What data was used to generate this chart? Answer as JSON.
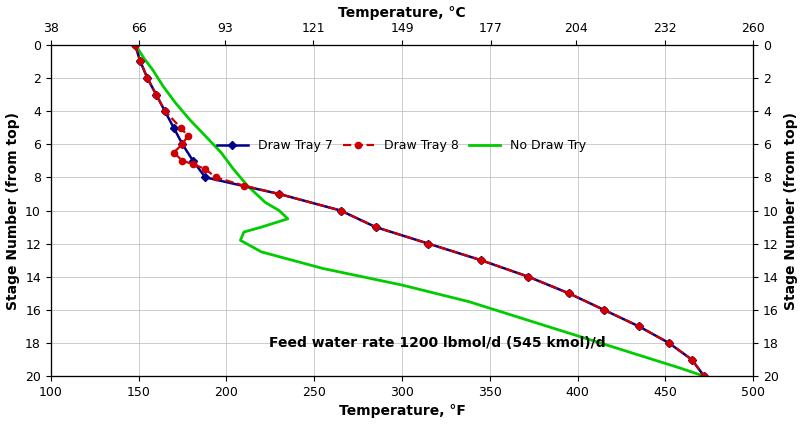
{
  "title_annotation": "Feed water rate 1200 lbmol/d (545 kmol)/d",
  "xlabel_bottom": "Temperature, °F",
  "xlabel_top": "Temperature, °C",
  "ylabel_left": "Stage Number (from top)",
  "ylabel_right": "Stage Number (from top)",
  "xlim_F": [
    100,
    500
  ],
  "xlim_C": [
    38,
    260
  ],
  "ylim": [
    0,
    20
  ],
  "xticks_F": [
    100,
    150,
    200,
    250,
    300,
    350,
    400,
    450,
    500
  ],
  "xticks_C": [
    38,
    66,
    93,
    121,
    149,
    177,
    204,
    232,
    260
  ],
  "yticks": [
    0,
    2,
    4,
    6,
    8,
    10,
    12,
    14,
    16,
    18,
    20
  ],
  "draw7_stage": [
    0,
    1,
    2,
    3,
    4,
    5,
    6,
    7,
    8,
    9,
    10,
    11,
    12,
    13,
    14,
    15,
    16,
    17,
    18,
    19,
    20
  ],
  "draw7_temp_F": [
    148,
    151,
    155,
    160,
    165,
    170,
    175,
    181,
    188,
    230,
    265,
    285,
    315,
    345,
    372,
    395,
    415,
    435,
    452,
    465,
    472
  ],
  "draw8_stage": [
    0,
    1,
    2,
    3,
    4,
    5,
    5.5,
    6,
    6.5,
    7,
    7.2,
    7.5,
    8,
    8.5,
    9,
    10,
    11,
    12,
    13,
    14,
    15,
    16,
    17,
    18,
    19,
    20
  ],
  "draw8_temp_F": [
    148,
    151,
    155,
    160,
    165,
    174,
    178,
    175,
    170,
    175,
    181,
    188,
    194,
    210,
    230,
    265,
    285,
    315,
    345,
    372,
    395,
    415,
    435,
    452,
    465,
    472
  ],
  "nodraw_stage": [
    0,
    0.3,
    0.8,
    1.5,
    2.5,
    3.5,
    4.5,
    5.5,
    6.5,
    7.5,
    8.5,
    9.5,
    10,
    10.5,
    11,
    11.3,
    11.8,
    12.5,
    13.5,
    14.5,
    15.5,
    16.5,
    17.5,
    18.5,
    19.5,
    20
  ],
  "nodraw_temp_F": [
    148,
    150,
    153,
    158,
    164,
    171,
    179,
    188,
    197,
    204,
    212,
    222,
    230,
    235,
    220,
    210,
    208,
    220,
    255,
    300,
    338,
    368,
    398,
    428,
    458,
    472
  ],
  "color_draw7": "#00008B",
  "color_draw8": "#CC0000",
  "color_nodraw": "#00CC00",
  "background_color": "#ffffff",
  "grid_color": "#b8b8b8"
}
